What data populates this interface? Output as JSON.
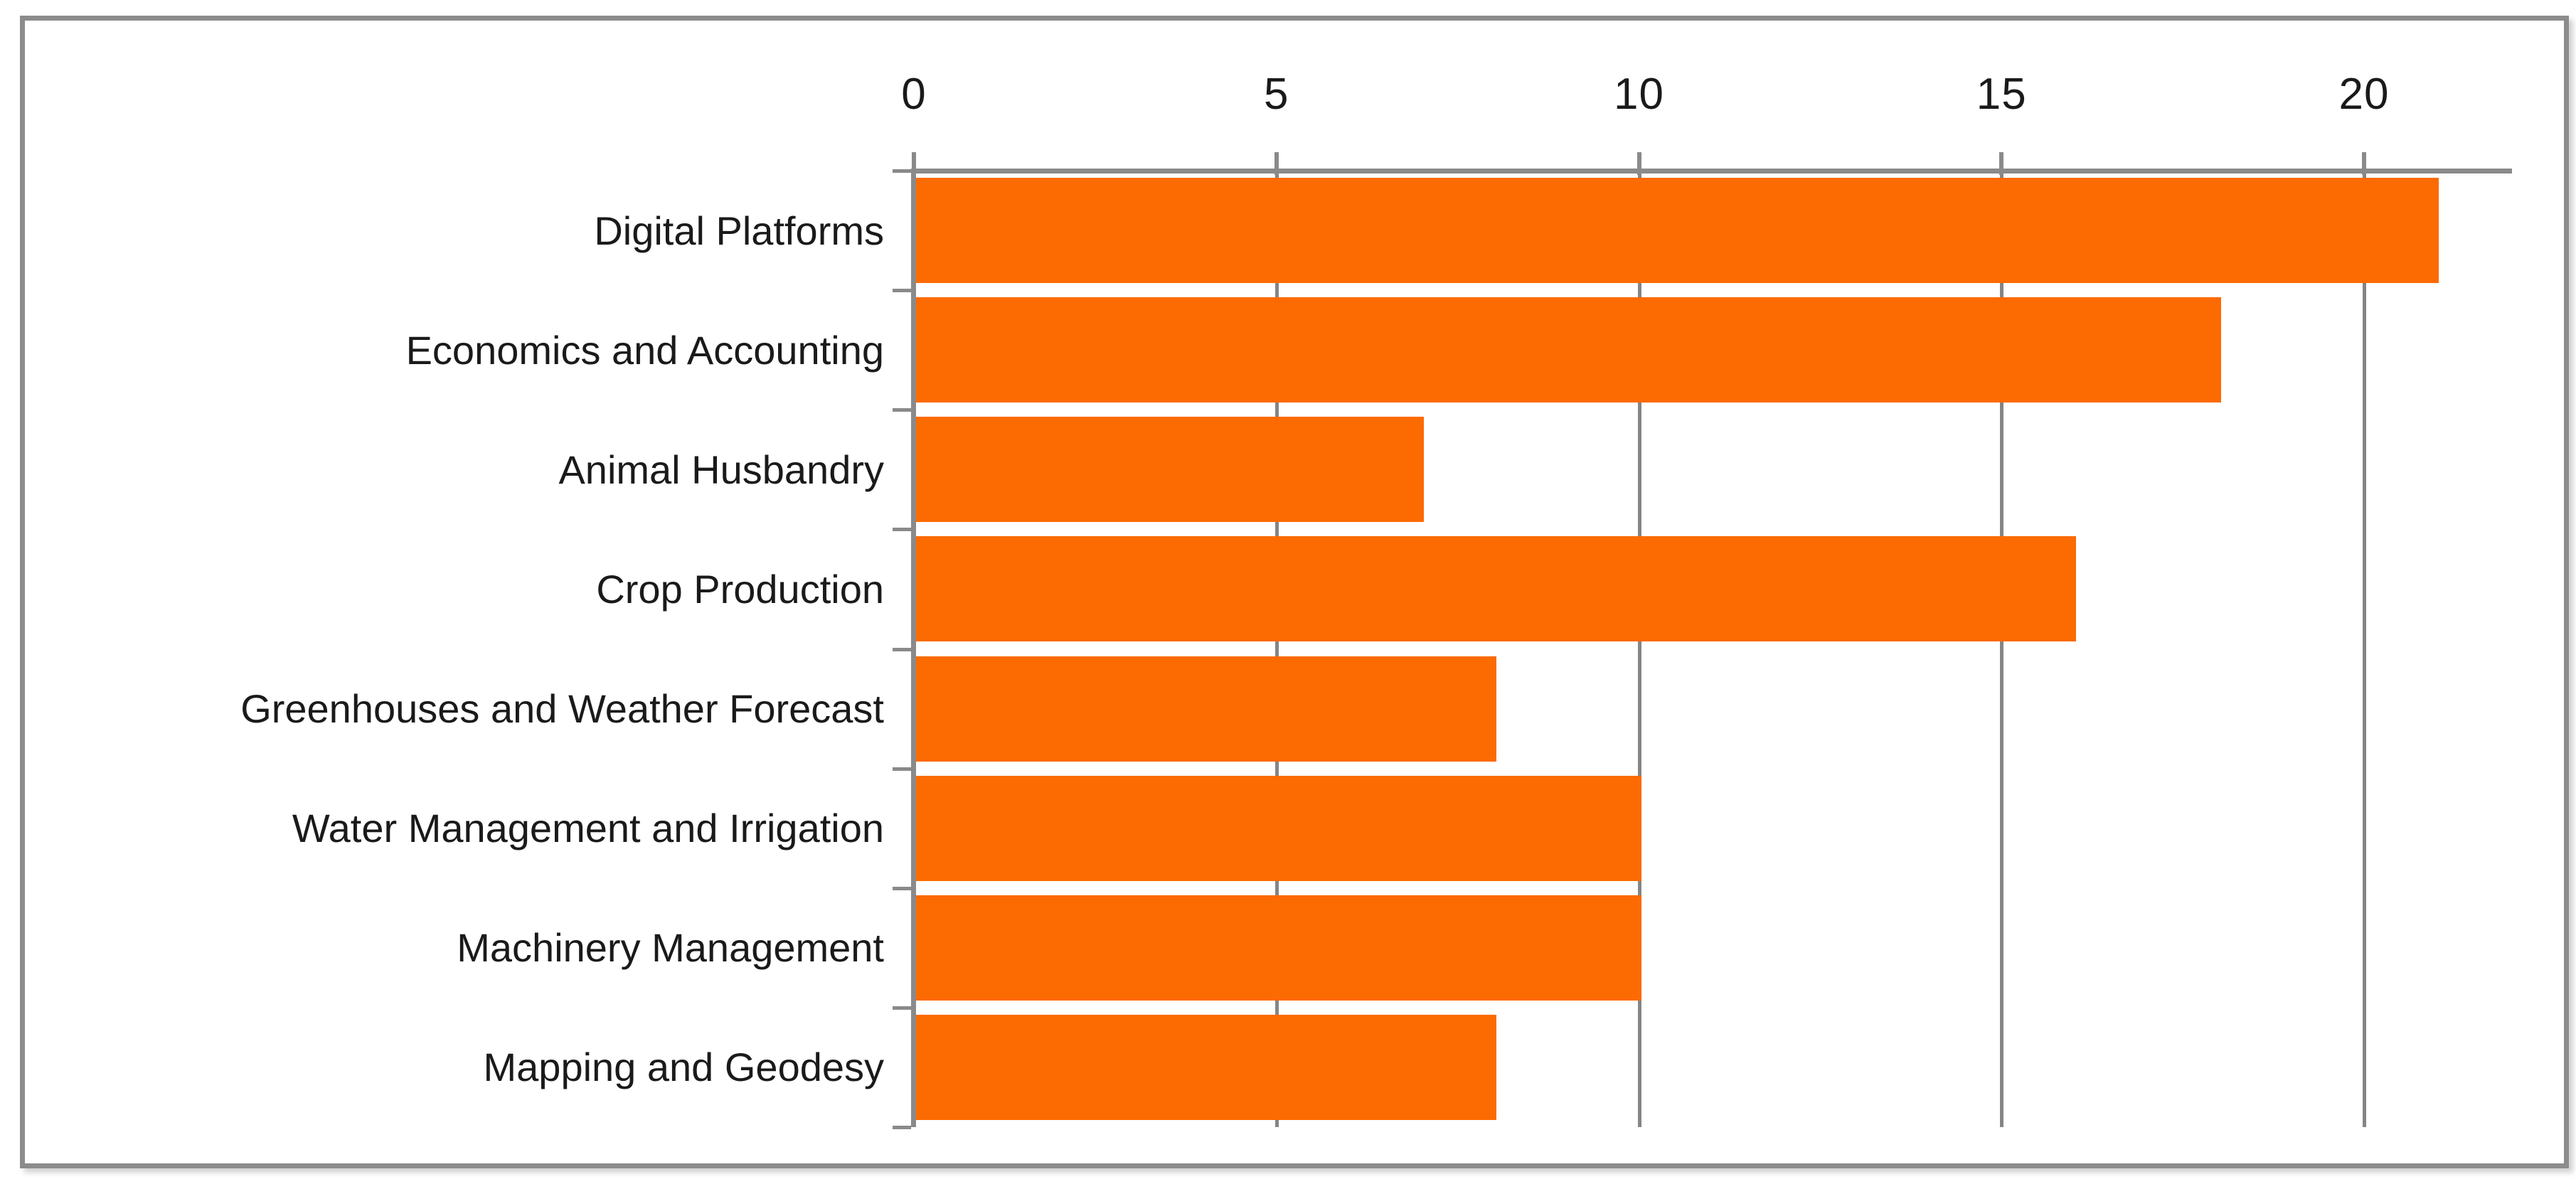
{
  "chart_data": {
    "type": "bar",
    "orientation": "horizontal",
    "title": "",
    "xlabel": "",
    "ylabel": "",
    "categories": [
      "Digital Platforms",
      "Economics and Accounting",
      "Animal Husbandry",
      "Crop Production",
      "Greenhouses and Weather Forecast",
      "Water Management and Irrigation",
      "Machinery Management",
      "Mapping and Geodesy"
    ],
    "values": [
      21,
      18,
      7,
      16,
      8,
      10,
      10,
      8
    ],
    "x_ticks": [
      "0",
      "5",
      "10",
      "15",
      "20"
    ],
    "x_tick_values": [
      0,
      5,
      10,
      15,
      20
    ],
    "xlim": [
      0,
      22
    ],
    "axis_side": "top",
    "grid": true,
    "legend": false,
    "colors": {
      "bar": "#FC6A02",
      "axis": "#8A8A8A",
      "gridline": "#858585",
      "tick": "#8A8A8A",
      "text": "#1A1A1A",
      "frame_border": "#8C8C8C",
      "background": "#FFFFFF"
    }
  }
}
